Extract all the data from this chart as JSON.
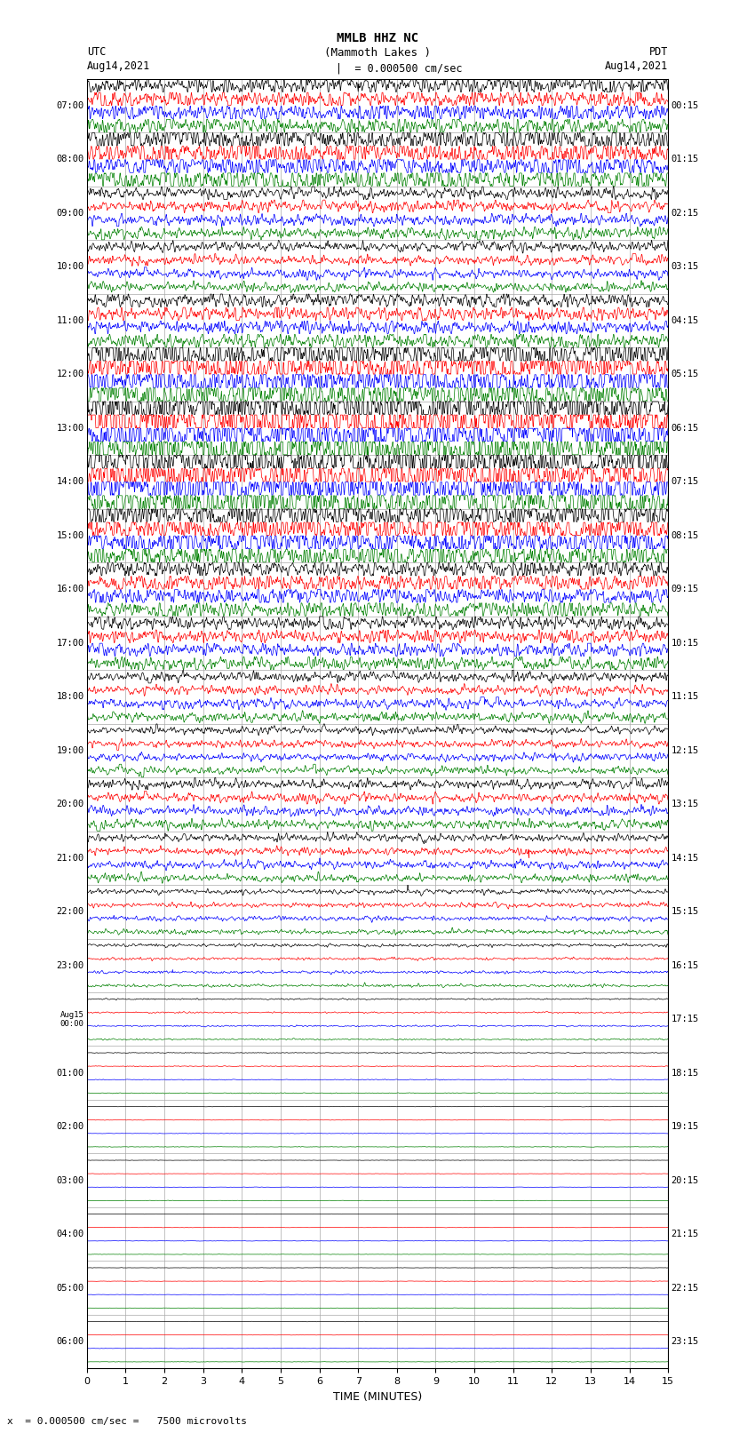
{
  "title_line1": "MMLB HHZ NC",
  "title_line2": "(Mammoth Lakes )",
  "title_scale": "= 0.000500 cm/sec",
  "xlabel": "TIME (MINUTES)",
  "footer": "x  = 0.000500 cm/sec =   7500 microvolts",
  "xmin": 0,
  "xmax": 15,
  "fig_width": 8.5,
  "fig_height": 16.13,
  "dpi": 100,
  "background_color": "#ffffff",
  "grid_color": "#aaaaaa",
  "trace_colors": [
    "black",
    "red",
    "blue",
    "green"
  ],
  "left_times_utc": [
    "07:00",
    "08:00",
    "09:00",
    "10:00",
    "11:00",
    "12:00",
    "13:00",
    "14:00",
    "15:00",
    "16:00",
    "17:00",
    "18:00",
    "19:00",
    "20:00",
    "21:00",
    "22:00",
    "23:00",
    "Aug15\n00:00",
    "01:00",
    "02:00",
    "03:00",
    "04:00",
    "05:00",
    "06:00"
  ],
  "right_times_pdt": [
    "00:15",
    "01:15",
    "02:15",
    "03:15",
    "04:15",
    "05:15",
    "06:15",
    "07:15",
    "08:15",
    "09:15",
    "10:15",
    "11:15",
    "12:15",
    "13:15",
    "14:15",
    "15:15",
    "16:15",
    "17:15",
    "18:15",
    "19:15",
    "20:15",
    "21:15",
    "22:15",
    "23:15"
  ],
  "n_rows": 24,
  "n_traces_per_row": 4,
  "noise_seed": 42,
  "amplitude_scale": 0.09,
  "row_amplitude_profile": [
    1.8,
    2.5,
    1.2,
    1.0,
    1.5,
    3.5,
    4.5,
    4.0,
    3.0,
    1.8,
    1.4,
    1.0,
    0.8,
    1.0,
    0.8,
    0.5,
    0.3,
    0.15,
    0.08,
    0.05,
    0.04,
    0.04,
    0.04,
    0.04
  ],
  "spike_probability": [
    0.15,
    0.18,
    0.08,
    0.06,
    0.1,
    0.2,
    0.25,
    0.22,
    0.18,
    0.1,
    0.08,
    0.06,
    0.05,
    0.06,
    0.05,
    0.04,
    0.03,
    0.02,
    0.01,
    0.005,
    0.003,
    0.003,
    0.003,
    0.003
  ]
}
